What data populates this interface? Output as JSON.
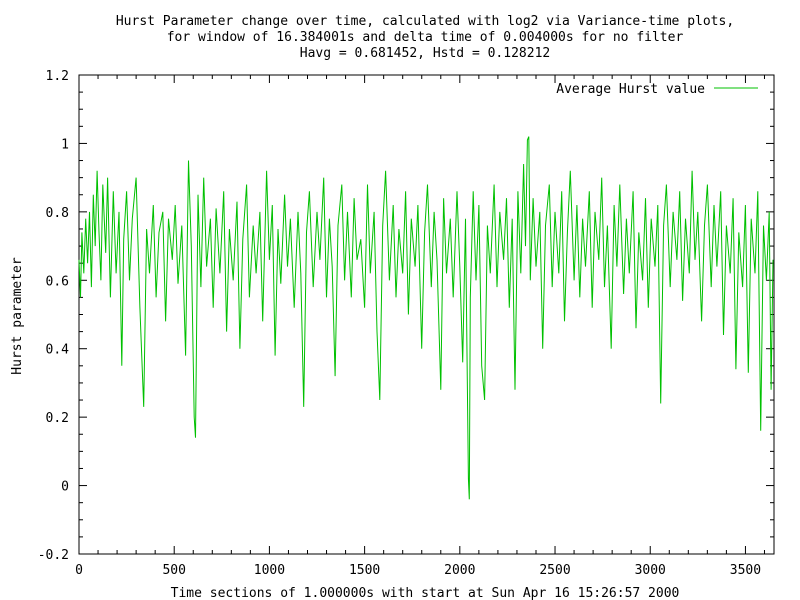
{
  "chart_data": {
    "type": "line",
    "title_lines": [
      "Hurst Parameter change over time, calculated with log2 via Variance-time plots,",
      "for window of 16.384001s and delta time of 0.004000s for no filter",
      "Havg = 0.681452, Hstd = 0.128212"
    ],
    "xlabel": "Time sections of 1.000000s with start at Sun Apr 16 15:26:57 2000",
    "ylabel": "Hurst parameter",
    "xlim": [
      0,
      3650
    ],
    "ylim": [
      -0.2,
      1.2
    ],
    "x_ticks": [
      0,
      500,
      1000,
      1500,
      2000,
      2500,
      3000,
      3500
    ],
    "x_tick_labels": [
      "0",
      "500",
      "1000",
      "1500",
      "2000",
      "2500",
      "3000",
      "3500"
    ],
    "y_ticks": [
      -0.2,
      0,
      0.2,
      0.4,
      0.6,
      0.8,
      1,
      1.2
    ],
    "y_tick_labels": [
      "-0.2",
      "0",
      "0.2",
      "0.4",
      "0.6",
      "0.8",
      "1",
      "1.2"
    ],
    "legend_placement": "top-right",
    "grid": false,
    "series": [
      {
        "name": "Average Hurst value",
        "color": "#00c000",
        "mean": 0.681452,
        "std": 0.128212,
        "points": [
          [
            0,
            0.66
          ],
          [
            8,
            0.55
          ],
          [
            15,
            0.74
          ],
          [
            25,
            0.62
          ],
          [
            35,
            0.78
          ],
          [
            45,
            0.65
          ],
          [
            55,
            0.8
          ],
          [
            65,
            0.58
          ],
          [
            75,
            0.85
          ],
          [
            85,
            0.7
          ],
          [
            95,
            0.92
          ],
          [
            105,
            0.74
          ],
          [
            115,
            0.6
          ],
          [
            125,
            0.88
          ],
          [
            140,
            0.68
          ],
          [
            150,
            0.9
          ],
          [
            165,
            0.55
          ],
          [
            180,
            0.86
          ],
          [
            195,
            0.62
          ],
          [
            210,
            0.8
          ],
          [
            225,
            0.35
          ],
          [
            235,
            0.72
          ],
          [
            250,
            0.86
          ],
          [
            265,
            0.6
          ],
          [
            280,
            0.78
          ],
          [
            300,
            0.9
          ],
          [
            320,
            0.52
          ],
          [
            340,
            0.23
          ],
          [
            355,
            0.75
          ],
          [
            370,
            0.62
          ],
          [
            390,
            0.82
          ],
          [
            405,
            0.55
          ],
          [
            420,
            0.74
          ],
          [
            440,
            0.8
          ],
          [
            455,
            0.48
          ],
          [
            470,
            0.78
          ],
          [
            490,
            0.66
          ],
          [
            505,
            0.82
          ],
          [
            520,
            0.59
          ],
          [
            540,
            0.76
          ],
          [
            560,
            0.38
          ],
          [
            575,
            0.95
          ],
          [
            590,
            0.7
          ],
          [
            605,
            0.2
          ],
          [
            612,
            0.14
          ],
          [
            625,
            0.85
          ],
          [
            640,
            0.58
          ],
          [
            655,
            0.9
          ],
          [
            670,
            0.64
          ],
          [
            690,
            0.78
          ],
          [
            705,
            0.52
          ],
          [
            720,
            0.81
          ],
          [
            740,
            0.62
          ],
          [
            760,
            0.86
          ],
          [
            775,
            0.45
          ],
          [
            790,
            0.75
          ],
          [
            810,
            0.6
          ],
          [
            830,
            0.83
          ],
          [
            845,
            0.4
          ],
          [
            860,
            0.72
          ],
          [
            880,
            0.88
          ],
          [
            895,
            0.55
          ],
          [
            915,
            0.76
          ],
          [
            930,
            0.62
          ],
          [
            950,
            0.8
          ],
          [
            965,
            0.48
          ],
          [
            985,
            0.92
          ],
          [
            1000,
            0.66
          ],
          [
            1015,
            0.82
          ],
          [
            1030,
            0.38
          ],
          [
            1045,
            0.75
          ],
          [
            1060,
            0.59
          ],
          [
            1080,
            0.85
          ],
          [
            1095,
            0.64
          ],
          [
            1110,
            0.78
          ],
          [
            1130,
            0.52
          ],
          [
            1150,
            0.8
          ],
          [
            1165,
            0.62
          ],
          [
            1180,
            0.23
          ],
          [
            1195,
            0.74
          ],
          [
            1210,
            0.86
          ],
          [
            1230,
            0.58
          ],
          [
            1250,
            0.8
          ],
          [
            1265,
            0.66
          ],
          [
            1285,
            0.9
          ],
          [
            1300,
            0.55
          ],
          [
            1315,
            0.78
          ],
          [
            1330,
            0.64
          ],
          [
            1345,
            0.32
          ],
          [
            1360,
            0.76
          ],
          [
            1380,
            0.88
          ],
          [
            1395,
            0.6
          ],
          [
            1410,
            0.8
          ],
          [
            1430,
            0.55
          ],
          [
            1445,
            0.84
          ],
          [
            1460,
            0.66
          ],
          [
            1480,
            0.72
          ],
          [
            1500,
            0.52
          ],
          [
            1515,
            0.88
          ],
          [
            1530,
            0.62
          ],
          [
            1550,
            0.8
          ],
          [
            1565,
            0.45
          ],
          [
            1580,
            0.25
          ],
          [
            1595,
            0.76
          ],
          [
            1610,
            0.92
          ],
          [
            1630,
            0.6
          ],
          [
            1650,
            0.82
          ],
          [
            1665,
            0.55
          ],
          [
            1680,
            0.75
          ],
          [
            1700,
            0.62
          ],
          [
            1715,
            0.86
          ],
          [
            1730,
            0.5
          ],
          [
            1745,
            0.78
          ],
          [
            1765,
            0.64
          ],
          [
            1780,
            0.82
          ],
          [
            1800,
            0.4
          ],
          [
            1815,
            0.74
          ],
          [
            1830,
            0.88
          ],
          [
            1850,
            0.58
          ],
          [
            1865,
            0.8
          ],
          [
            1880,
            0.66
          ],
          [
            1900,
            0.28
          ],
          [
            1915,
            0.84
          ],
          [
            1930,
            0.62
          ],
          [
            1950,
            0.78
          ],
          [
            1965,
            0.55
          ],
          [
            1985,
            0.86
          ],
          [
            2000,
            0.64
          ],
          [
            2015,
            0.36
          ],
          [
            2030,
            0.78
          ],
          [
            2045,
            0.02
          ],
          [
            2050,
            -0.04
          ],
          [
            2055,
            0.55
          ],
          [
            2070,
            0.86
          ],
          [
            2085,
            0.6
          ],
          [
            2100,
            0.82
          ],
          [
            2115,
            0.35
          ],
          [
            2130,
            0.25
          ],
          [
            2145,
            0.76
          ],
          [
            2160,
            0.62
          ],
          [
            2180,
            0.88
          ],
          [
            2195,
            0.58
          ],
          [
            2210,
            0.8
          ],
          [
            2230,
            0.66
          ],
          [
            2245,
            0.84
          ],
          [
            2260,
            0.52
          ],
          [
            2275,
            0.78
          ],
          [
            2290,
            0.28
          ],
          [
            2305,
            0.86
          ],
          [
            2320,
            0.62
          ],
          [
            2335,
            0.94
          ],
          [
            2345,
            0.7
          ],
          [
            2355,
            1.01
          ],
          [
            2362,
            1.02
          ],
          [
            2370,
            0.6
          ],
          [
            2385,
            0.84
          ],
          [
            2400,
            0.64
          ],
          [
            2420,
            0.8
          ],
          [
            2435,
            0.4
          ],
          [
            2450,
            0.76
          ],
          [
            2470,
            0.88
          ],
          [
            2485,
            0.58
          ],
          [
            2500,
            0.8
          ],
          [
            2520,
            0.62
          ],
          [
            2535,
            0.86
          ],
          [
            2550,
            0.48
          ],
          [
            2565,
            0.74
          ],
          [
            2580,
            0.92
          ],
          [
            2600,
            0.6
          ],
          [
            2615,
            0.82
          ],
          [
            2630,
            0.55
          ],
          [
            2645,
            0.78
          ],
          [
            2660,
            0.64
          ],
          [
            2680,
            0.86
          ],
          [
            2695,
            0.52
          ],
          [
            2710,
            0.8
          ],
          [
            2730,
            0.66
          ],
          [
            2745,
            0.9
          ],
          [
            2760,
            0.58
          ],
          [
            2775,
            0.76
          ],
          [
            2795,
            0.4
          ],
          [
            2810,
            0.82
          ],
          [
            2825,
            0.64
          ],
          [
            2840,
            0.88
          ],
          [
            2860,
            0.56
          ],
          [
            2875,
            0.78
          ],
          [
            2890,
            0.62
          ],
          [
            2910,
            0.86
          ],
          [
            2925,
            0.46
          ],
          [
            2940,
            0.74
          ],
          [
            2960,
            0.6
          ],
          [
            2975,
            0.84
          ],
          [
            2990,
            0.52
          ],
          [
            3005,
            0.78
          ],
          [
            3025,
            0.64
          ],
          [
            3040,
            0.82
          ],
          [
            3055,
            0.24
          ],
          [
            3070,
            0.76
          ],
          [
            3085,
            0.88
          ],
          [
            3105,
            0.58
          ],
          [
            3120,
            0.8
          ],
          [
            3140,
            0.66
          ],
          [
            3155,
            0.86
          ],
          [
            3170,
            0.54
          ],
          [
            3185,
            0.78
          ],
          [
            3205,
            0.62
          ],
          [
            3220,
            0.92
          ],
          [
            3235,
            0.66
          ],
          [
            3250,
            0.8
          ],
          [
            3270,
            0.48
          ],
          [
            3285,
            0.76
          ],
          [
            3300,
            0.88
          ],
          [
            3320,
            0.58
          ],
          [
            3335,
            0.82
          ],
          [
            3350,
            0.64
          ],
          [
            3370,
            0.86
          ],
          [
            3385,
            0.44
          ],
          [
            3400,
            0.76
          ],
          [
            3420,
            0.62
          ],
          [
            3435,
            0.84
          ],
          [
            3450,
            0.34
          ],
          [
            3465,
            0.74
          ],
          [
            3485,
            0.58
          ],
          [
            3500,
            0.82
          ],
          [
            3515,
            0.33
          ],
          [
            3530,
            0.78
          ],
          [
            3550,
            0.62
          ],
          [
            3565,
            0.86
          ],
          [
            3580,
            0.16
          ],
          [
            3595,
            0.76
          ],
          [
            3610,
            0.6
          ],
          [
            3625,
            0.8
          ],
          [
            3635,
            0.28
          ],
          [
            3645,
            0.66
          ]
        ]
      }
    ]
  }
}
